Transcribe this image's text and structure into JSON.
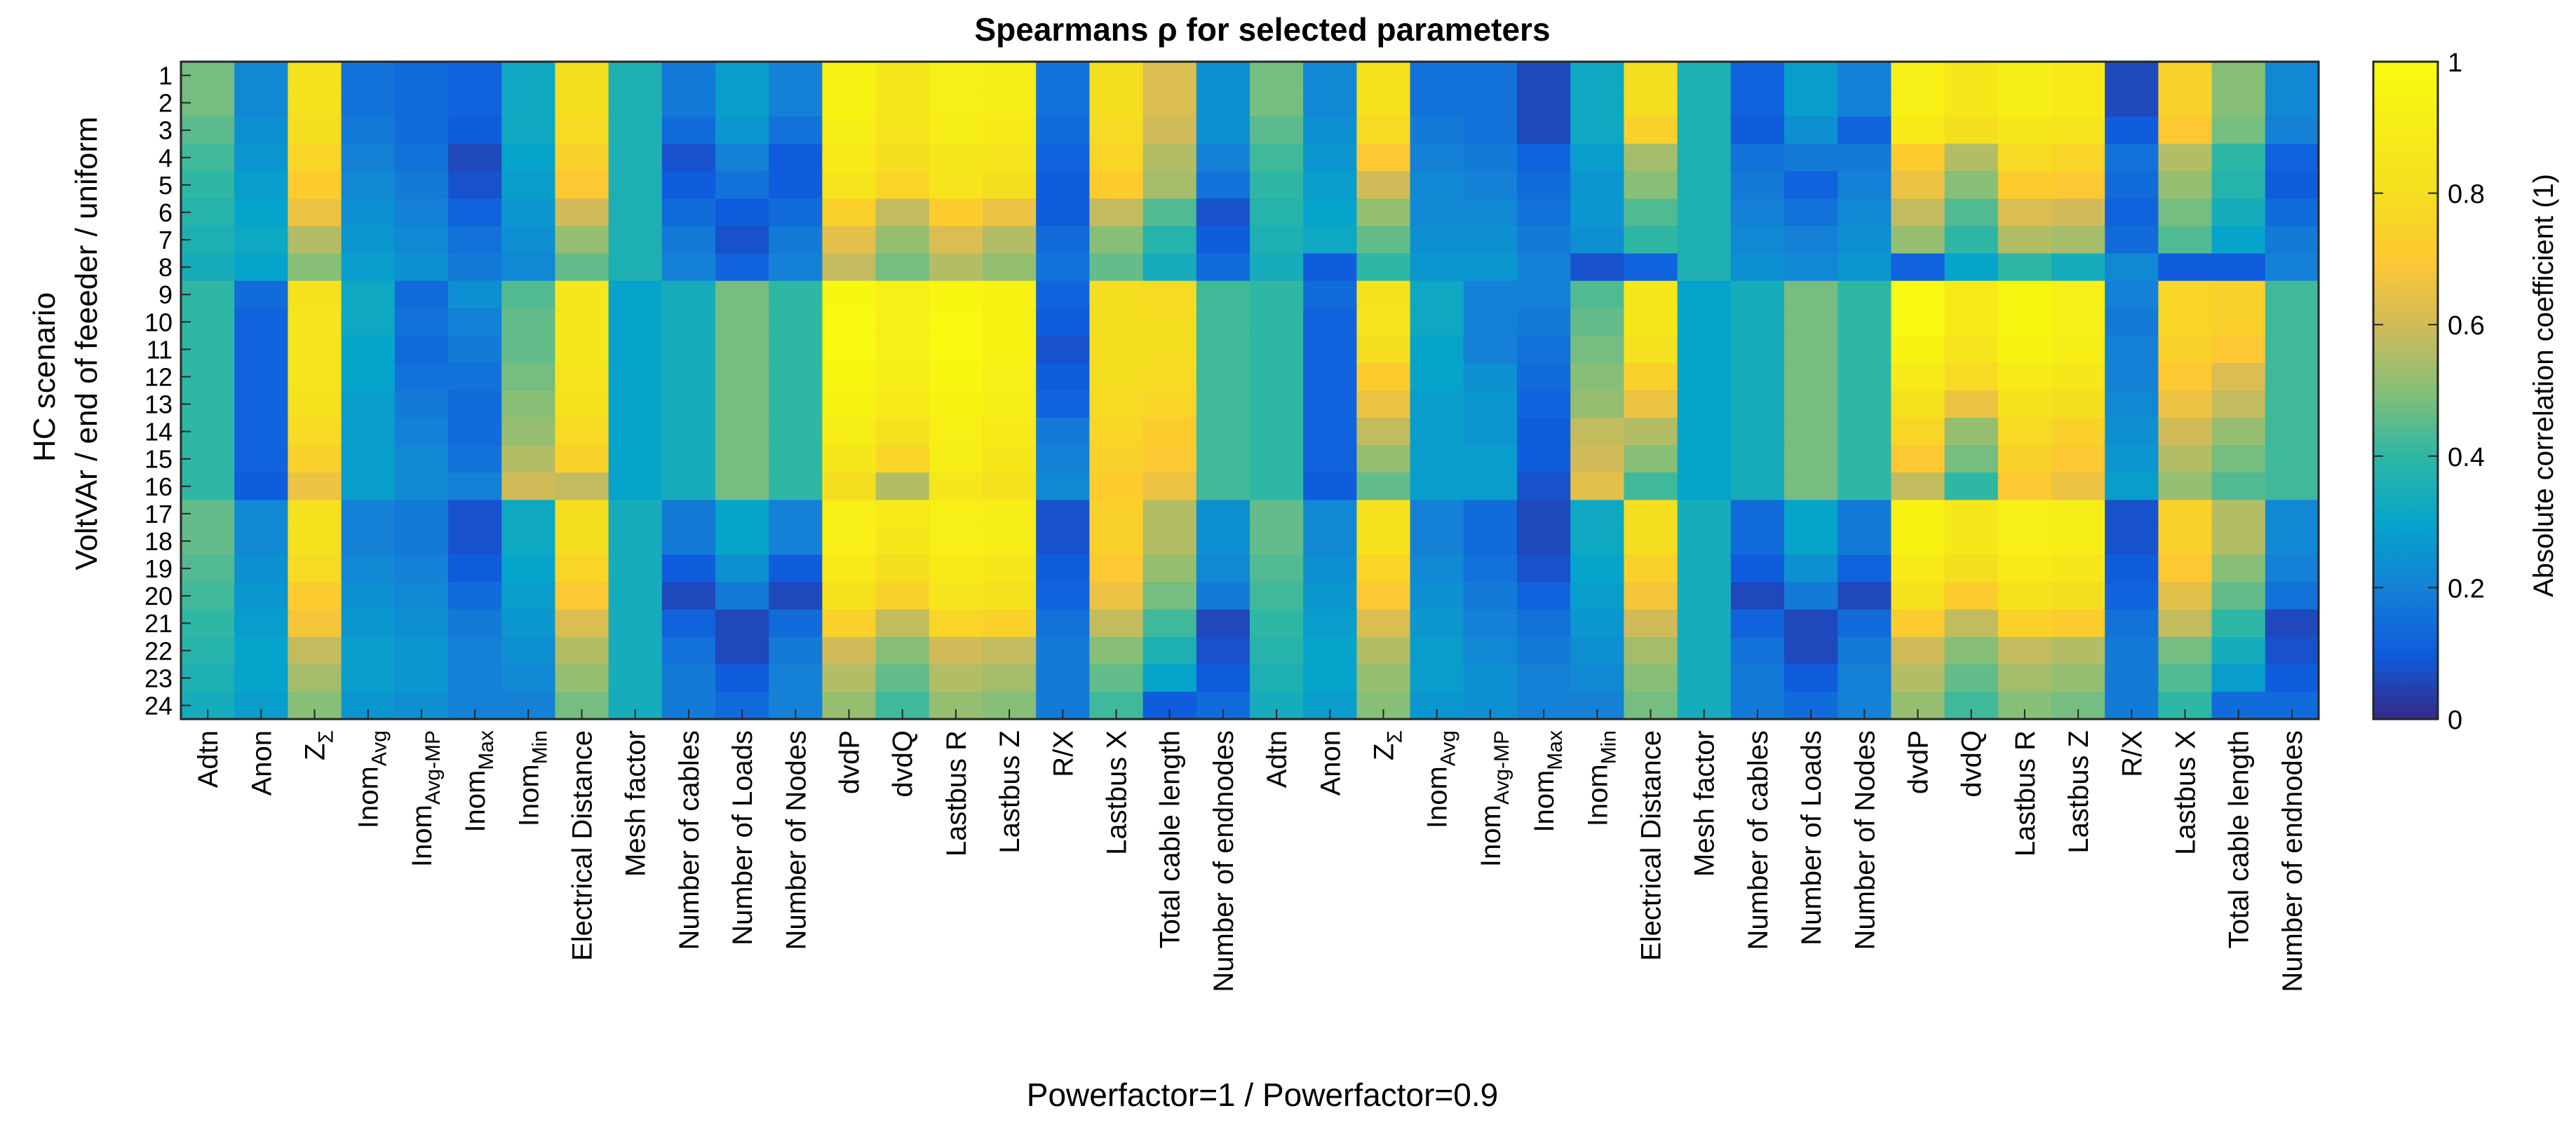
{
  "chart_data": {
    "type": "heatmap",
    "title": "Spearmans ρ for selected parameters",
    "xlabel": "Powerfactor=1 / Powerfactor=0.9",
    "ylabel_line1": "HC scenario",
    "ylabel_line2": "VoltVAr / end of feeeder / uniform",
    "colorbar_label": "Absolute correlation coefficient (1)",
    "colorbar_ticks": [
      "0",
      "0.2",
      "0.4",
      "0.6",
      "0.8",
      "1"
    ],
    "colorbar_range": [
      0,
      1
    ],
    "y_categories": [
      "1",
      "2",
      "3",
      "4",
      "5",
      "6",
      "7",
      "8",
      "9",
      "10",
      "11",
      "12",
      "13",
      "14",
      "15",
      "16",
      "17",
      "18",
      "19",
      "20",
      "21",
      "22",
      "23",
      "24"
    ],
    "x_categories": [
      {
        "label": "Adtn"
      },
      {
        "label": "Anon"
      },
      {
        "label": "Z",
        "sub": "Σ"
      },
      {
        "label": "Inom",
        "sub": "Avg"
      },
      {
        "label": "Inom",
        "sub": "Avg-MP"
      },
      {
        "label": "Inom",
        "sub": "Max"
      },
      {
        "label": "Inom",
        "sub": "Min"
      },
      {
        "label": "Electrical Distance"
      },
      {
        "label": "Mesh factor"
      },
      {
        "label": "Number of cables"
      },
      {
        "label": "Number of Loads"
      },
      {
        "label": "Number of Nodes"
      },
      {
        "label": "dvdP"
      },
      {
        "label": "dvdQ"
      },
      {
        "label": "Lastbus R"
      },
      {
        "label": "Lastbus Z"
      },
      {
        "label": "R/X"
      },
      {
        "label": "Lastbus X"
      },
      {
        "label": "Total cable length"
      },
      {
        "label": "Number of endnodes"
      },
      {
        "label": "Adtn"
      },
      {
        "label": "Anon"
      },
      {
        "label": "Z",
        "sub": "Σ"
      },
      {
        "label": "Inom",
        "sub": "Avg"
      },
      {
        "label": "Inom",
        "sub": "Avg-MP"
      },
      {
        "label": "Inom",
        "sub": "Max"
      },
      {
        "label": "Inom",
        "sub": "Min"
      },
      {
        "label": "Electrical Distance"
      },
      {
        "label": "Mesh factor"
      },
      {
        "label": "Number of cables"
      },
      {
        "label": "Number of Loads"
      },
      {
        "label": "Number of Nodes"
      },
      {
        "label": "dvdP"
      },
      {
        "label": "dvdQ"
      },
      {
        "label": "Lastbus R"
      },
      {
        "label": "Lastbus Z"
      },
      {
        "label": "R/X"
      },
      {
        "label": "Lastbus X"
      },
      {
        "label": "Total cable length"
      },
      {
        "label": "Number of endnodes"
      }
    ],
    "values": [
      [
        0.48,
        0.22,
        0.82,
        0.16,
        0.14,
        0.12,
        0.32,
        0.8,
        0.36,
        0.18,
        0.28,
        0.2,
        0.93,
        0.86,
        0.92,
        0.9,
        0.16,
        0.8,
        0.62,
        0.24,
        0.48,
        0.22,
        0.82,
        0.16,
        0.16,
        0.06,
        0.32,
        0.8,
        0.36,
        0.12,
        0.28,
        0.2,
        0.92,
        0.86,
        0.9,
        0.88,
        0.06,
        0.74,
        0.5,
        0.22
      ],
      [
        0.48,
        0.22,
        0.82,
        0.16,
        0.14,
        0.12,
        0.32,
        0.8,
        0.36,
        0.18,
        0.28,
        0.2,
        0.93,
        0.86,
        0.92,
        0.9,
        0.16,
        0.8,
        0.62,
        0.24,
        0.48,
        0.22,
        0.82,
        0.16,
        0.16,
        0.06,
        0.32,
        0.8,
        0.36,
        0.12,
        0.28,
        0.2,
        0.92,
        0.86,
        0.9,
        0.88,
        0.06,
        0.74,
        0.5,
        0.22
      ],
      [
        0.45,
        0.24,
        0.8,
        0.18,
        0.14,
        0.1,
        0.32,
        0.78,
        0.36,
        0.14,
        0.26,
        0.16,
        0.9,
        0.84,
        0.9,
        0.88,
        0.14,
        0.78,
        0.6,
        0.24,
        0.45,
        0.24,
        0.78,
        0.18,
        0.16,
        0.06,
        0.32,
        0.74,
        0.36,
        0.1,
        0.24,
        0.12,
        0.88,
        0.8,
        0.86,
        0.84,
        0.1,
        0.7,
        0.48,
        0.2
      ],
      [
        0.42,
        0.26,
        0.76,
        0.2,
        0.16,
        0.06,
        0.3,
        0.74,
        0.36,
        0.08,
        0.2,
        0.1,
        0.88,
        0.8,
        0.86,
        0.84,
        0.12,
        0.76,
        0.56,
        0.2,
        0.42,
        0.26,
        0.7,
        0.2,
        0.18,
        0.12,
        0.28,
        0.54,
        0.36,
        0.16,
        0.18,
        0.18,
        0.72,
        0.56,
        0.78,
        0.76,
        0.16,
        0.56,
        0.4,
        0.12
      ],
      [
        0.4,
        0.28,
        0.72,
        0.22,
        0.18,
        0.08,
        0.28,
        0.7,
        0.36,
        0.1,
        0.16,
        0.1,
        0.84,
        0.76,
        0.84,
        0.8,
        0.1,
        0.72,
        0.54,
        0.16,
        0.4,
        0.28,
        0.6,
        0.22,
        0.2,
        0.14,
        0.26,
        0.5,
        0.36,
        0.18,
        0.12,
        0.2,
        0.66,
        0.5,
        0.72,
        0.7,
        0.14,
        0.52,
        0.38,
        0.1
      ],
      [
        0.38,
        0.3,
        0.66,
        0.24,
        0.2,
        0.12,
        0.26,
        0.6,
        0.36,
        0.14,
        0.1,
        0.14,
        0.74,
        0.58,
        0.72,
        0.66,
        0.1,
        0.58,
        0.44,
        0.08,
        0.38,
        0.3,
        0.52,
        0.22,
        0.22,
        0.16,
        0.26,
        0.44,
        0.36,
        0.2,
        0.16,
        0.22,
        0.58,
        0.44,
        0.62,
        0.6,
        0.12,
        0.48,
        0.34,
        0.14
      ],
      [
        0.36,
        0.32,
        0.56,
        0.26,
        0.22,
        0.16,
        0.24,
        0.52,
        0.36,
        0.18,
        0.08,
        0.18,
        0.64,
        0.52,
        0.62,
        0.56,
        0.14,
        0.5,
        0.38,
        0.1,
        0.36,
        0.32,
        0.46,
        0.24,
        0.24,
        0.18,
        0.24,
        0.4,
        0.36,
        0.22,
        0.2,
        0.24,
        0.52,
        0.4,
        0.56,
        0.54,
        0.14,
        0.44,
        0.3,
        0.18
      ],
      [
        0.34,
        0.3,
        0.5,
        0.28,
        0.24,
        0.18,
        0.22,
        0.46,
        0.36,
        0.2,
        0.12,
        0.2,
        0.58,
        0.48,
        0.56,
        0.52,
        0.16,
        0.46,
        0.34,
        0.14,
        0.34,
        0.1,
        0.4,
        0.26,
        0.26,
        0.2,
        0.08,
        0.12,
        0.36,
        0.24,
        0.22,
        0.26,
        0.12,
        0.3,
        0.4,
        0.34,
        0.22,
        0.1,
        0.1,
        0.2
      ],
      [
        0.4,
        0.14,
        0.82,
        0.32,
        0.14,
        0.24,
        0.44,
        0.86,
        0.3,
        0.34,
        0.48,
        0.4,
        0.97,
        0.92,
        0.96,
        0.94,
        0.12,
        0.8,
        0.78,
        0.42,
        0.4,
        0.14,
        0.82,
        0.32,
        0.2,
        0.2,
        0.44,
        0.86,
        0.3,
        0.34,
        0.48,
        0.4,
        0.98,
        0.88,
        0.96,
        0.92,
        0.2,
        0.76,
        0.74,
        0.42
      ],
      [
        0.4,
        0.12,
        0.84,
        0.32,
        0.16,
        0.2,
        0.46,
        0.86,
        0.3,
        0.34,
        0.48,
        0.4,
        0.98,
        0.92,
        0.98,
        0.94,
        0.1,
        0.8,
        0.8,
        0.42,
        0.4,
        0.12,
        0.84,
        0.32,
        0.2,
        0.18,
        0.46,
        0.86,
        0.3,
        0.34,
        0.48,
        0.4,
        0.98,
        0.88,
        0.96,
        0.92,
        0.18,
        0.76,
        0.74,
        0.42
      ],
      [
        0.4,
        0.12,
        0.84,
        0.3,
        0.14,
        0.18,
        0.46,
        0.86,
        0.3,
        0.34,
        0.48,
        0.4,
        0.98,
        0.92,
        0.98,
        0.94,
        0.08,
        0.8,
        0.8,
        0.42,
        0.4,
        0.12,
        0.8,
        0.3,
        0.2,
        0.16,
        0.48,
        0.82,
        0.3,
        0.34,
        0.48,
        0.4,
        0.94,
        0.84,
        0.94,
        0.9,
        0.2,
        0.74,
        0.7,
        0.42
      ],
      [
        0.4,
        0.12,
        0.84,
        0.3,
        0.16,
        0.16,
        0.48,
        0.84,
        0.3,
        0.34,
        0.48,
        0.4,
        0.96,
        0.9,
        0.96,
        0.92,
        0.1,
        0.8,
        0.78,
        0.42,
        0.4,
        0.12,
        0.72,
        0.3,
        0.24,
        0.14,
        0.5,
        0.74,
        0.3,
        0.34,
        0.48,
        0.4,
        0.88,
        0.78,
        0.88,
        0.86,
        0.2,
        0.7,
        0.62,
        0.42
      ],
      [
        0.4,
        0.12,
        0.82,
        0.28,
        0.18,
        0.14,
        0.5,
        0.82,
        0.3,
        0.34,
        0.48,
        0.4,
        0.94,
        0.88,
        0.94,
        0.9,
        0.12,
        0.78,
        0.76,
        0.42,
        0.4,
        0.12,
        0.66,
        0.28,
        0.26,
        0.12,
        0.52,
        0.66,
        0.3,
        0.34,
        0.48,
        0.4,
        0.82,
        0.66,
        0.82,
        0.8,
        0.22,
        0.66,
        0.58,
        0.42
      ],
      [
        0.4,
        0.12,
        0.78,
        0.28,
        0.2,
        0.14,
        0.52,
        0.78,
        0.3,
        0.34,
        0.48,
        0.4,
        0.9,
        0.82,
        0.92,
        0.88,
        0.18,
        0.76,
        0.72,
        0.42,
        0.4,
        0.12,
        0.58,
        0.28,
        0.26,
        0.1,
        0.58,
        0.56,
        0.3,
        0.34,
        0.48,
        0.4,
        0.76,
        0.52,
        0.78,
        0.74,
        0.24,
        0.6,
        0.52,
        0.42
      ],
      [
        0.4,
        0.12,
        0.74,
        0.28,
        0.22,
        0.16,
        0.56,
        0.74,
        0.3,
        0.34,
        0.48,
        0.4,
        0.86,
        0.76,
        0.9,
        0.86,
        0.2,
        0.74,
        0.7,
        0.42,
        0.4,
        0.12,
        0.52,
        0.28,
        0.28,
        0.1,
        0.6,
        0.5,
        0.3,
        0.34,
        0.48,
        0.4,
        0.7,
        0.48,
        0.74,
        0.7,
        0.26,
        0.56,
        0.48,
        0.42
      ],
      [
        0.4,
        0.1,
        0.66,
        0.28,
        0.22,
        0.2,
        0.6,
        0.58,
        0.3,
        0.34,
        0.48,
        0.4,
        0.8,
        0.56,
        0.86,
        0.82,
        0.22,
        0.72,
        0.66,
        0.42,
        0.4,
        0.1,
        0.46,
        0.28,
        0.28,
        0.08,
        0.64,
        0.42,
        0.3,
        0.34,
        0.48,
        0.4,
        0.58,
        0.4,
        0.7,
        0.66,
        0.28,
        0.52,
        0.44,
        0.42
      ],
      [
        0.46,
        0.22,
        0.82,
        0.2,
        0.18,
        0.08,
        0.32,
        0.8,
        0.34,
        0.18,
        0.3,
        0.2,
        0.92,
        0.88,
        0.92,
        0.9,
        0.08,
        0.74,
        0.56,
        0.24,
        0.46,
        0.22,
        0.82,
        0.2,
        0.14,
        0.06,
        0.32,
        0.8,
        0.34,
        0.14,
        0.3,
        0.18,
        0.94,
        0.86,
        0.92,
        0.9,
        0.08,
        0.74,
        0.56,
        0.22
      ],
      [
        0.46,
        0.22,
        0.82,
        0.2,
        0.18,
        0.08,
        0.32,
        0.8,
        0.34,
        0.18,
        0.3,
        0.2,
        0.92,
        0.86,
        0.92,
        0.9,
        0.08,
        0.74,
        0.56,
        0.24,
        0.46,
        0.22,
        0.82,
        0.2,
        0.14,
        0.06,
        0.32,
        0.8,
        0.34,
        0.14,
        0.3,
        0.18,
        0.94,
        0.86,
        0.92,
        0.9,
        0.08,
        0.74,
        0.56,
        0.22
      ],
      [
        0.44,
        0.24,
        0.78,
        0.22,
        0.2,
        0.1,
        0.3,
        0.76,
        0.34,
        0.1,
        0.24,
        0.1,
        0.88,
        0.8,
        0.88,
        0.86,
        0.1,
        0.7,
        0.52,
        0.22,
        0.44,
        0.24,
        0.76,
        0.22,
        0.16,
        0.08,
        0.3,
        0.74,
        0.34,
        0.1,
        0.24,
        0.12,
        0.88,
        0.8,
        0.88,
        0.86,
        0.1,
        0.7,
        0.5,
        0.2
      ],
      [
        0.42,
        0.26,
        0.72,
        0.24,
        0.22,
        0.14,
        0.28,
        0.7,
        0.34,
        0.06,
        0.18,
        0.06,
        0.82,
        0.74,
        0.84,
        0.82,
        0.12,
        0.66,
        0.48,
        0.18,
        0.42,
        0.26,
        0.7,
        0.24,
        0.18,
        0.12,
        0.28,
        0.68,
        0.34,
        0.06,
        0.18,
        0.06,
        0.82,
        0.72,
        0.82,
        0.8,
        0.12,
        0.64,
        0.46,
        0.16
      ],
      [
        0.4,
        0.28,
        0.68,
        0.26,
        0.24,
        0.18,
        0.26,
        0.62,
        0.34,
        0.12,
        0.06,
        0.14,
        0.74,
        0.58,
        0.76,
        0.74,
        0.16,
        0.58,
        0.42,
        0.06,
        0.4,
        0.28,
        0.62,
        0.26,
        0.2,
        0.16,
        0.26,
        0.6,
        0.34,
        0.12,
        0.06,
        0.14,
        0.72,
        0.58,
        0.74,
        0.72,
        0.16,
        0.58,
        0.4,
        0.06
      ],
      [
        0.38,
        0.3,
        0.58,
        0.28,
        0.26,
        0.2,
        0.24,
        0.56,
        0.34,
        0.16,
        0.06,
        0.18,
        0.6,
        0.5,
        0.6,
        0.58,
        0.18,
        0.5,
        0.36,
        0.08,
        0.38,
        0.3,
        0.56,
        0.28,
        0.22,
        0.18,
        0.24,
        0.54,
        0.34,
        0.16,
        0.06,
        0.18,
        0.6,
        0.5,
        0.58,
        0.56,
        0.18,
        0.48,
        0.34,
        0.08
      ],
      [
        0.36,
        0.3,
        0.54,
        0.28,
        0.26,
        0.2,
        0.22,
        0.52,
        0.34,
        0.18,
        0.1,
        0.2,
        0.56,
        0.46,
        0.56,
        0.54,
        0.18,
        0.46,
        0.3,
        0.1,
        0.36,
        0.3,
        0.52,
        0.28,
        0.24,
        0.2,
        0.22,
        0.5,
        0.34,
        0.18,
        0.1,
        0.2,
        0.56,
        0.46,
        0.54,
        0.52,
        0.18,
        0.44,
        0.28,
        0.1
      ],
      [
        0.34,
        0.28,
        0.5,
        0.26,
        0.24,
        0.2,
        0.2,
        0.48,
        0.34,
        0.18,
        0.14,
        0.2,
        0.52,
        0.42,
        0.52,
        0.5,
        0.18,
        0.42,
        0.1,
        0.14,
        0.34,
        0.28,
        0.5,
        0.26,
        0.24,
        0.2,
        0.2,
        0.48,
        0.34,
        0.18,
        0.14,
        0.2,
        0.52,
        0.42,
        0.5,
        0.48,
        0.18,
        0.4,
        0.14,
        0.14
      ]
    ]
  }
}
